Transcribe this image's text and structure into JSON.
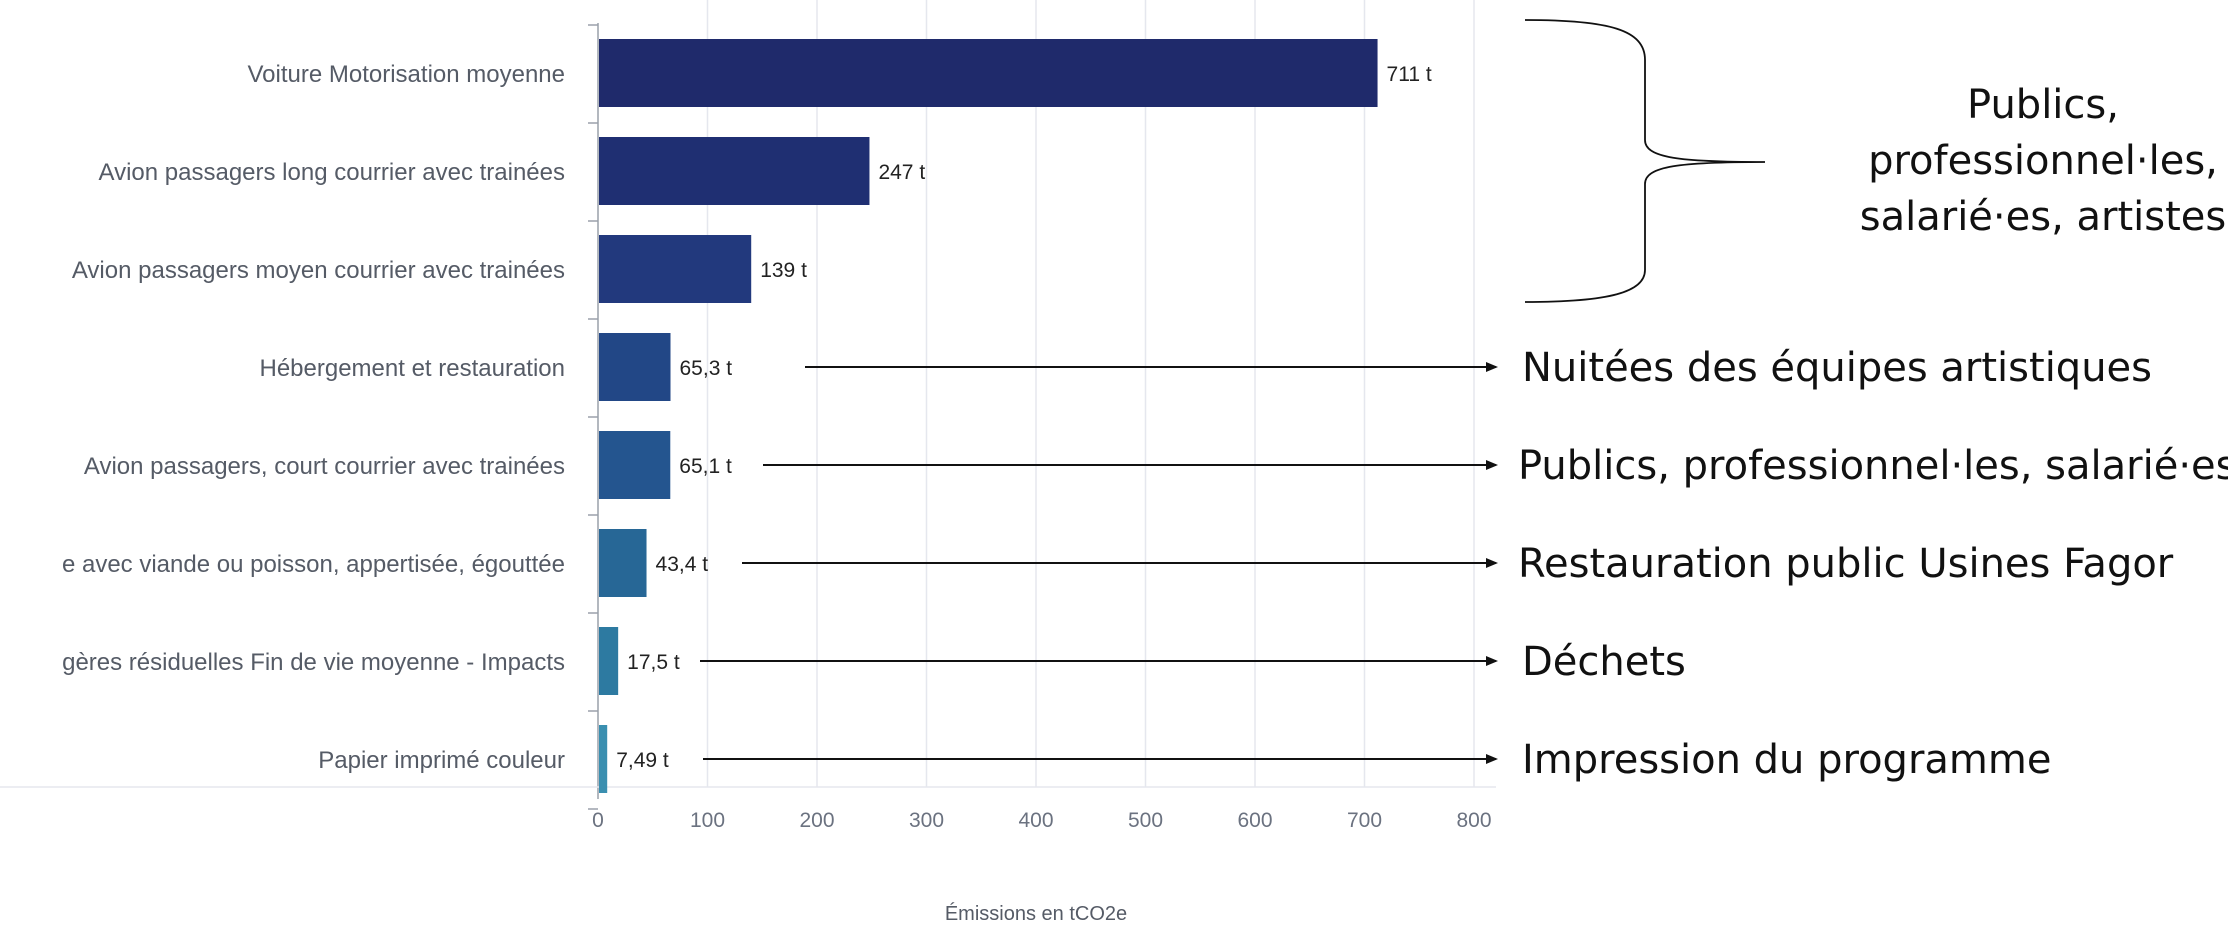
{
  "chart_data": {
    "type": "bar",
    "orientation": "horizontal",
    "categories": [
      "Voiture Motorisation moyenne",
      "Avion passagers long courrier avec trainées",
      "Avion passagers moyen courrier avec trainées",
      "Hébergement et restauration",
      "Avion passagers, court courrier avec trainées",
      "e avec viande ou poisson, appertisée, égouttée",
      "gères résiduelles Fin de vie moyenne - Impacts",
      "Papier imprimé couleur"
    ],
    "values": [
      711,
      247,
      139,
      65.3,
      65.1,
      43.4,
      17.5,
      7.49
    ],
    "value_labels": [
      "711 t",
      "247 t",
      "139 t",
      "65,3 t",
      "65,1 t",
      "43,4 t",
      "17,5 t",
      "7,49 t"
    ],
    "bar_colors": [
      "#1f2a6b",
      "#1f2f72",
      "#22397d",
      "#224786",
      "#24558f",
      "#276796",
      "#2d7aa1",
      "#3a8fb0"
    ],
    "xlabel": "Émissions en tCO2e",
    "ylabel": "",
    "xlim": [
      0,
      800
    ],
    "xticks": [
      0,
      100,
      200,
      300,
      400,
      500,
      600,
      700,
      800
    ],
    "grid": "vertical"
  },
  "annotations": {
    "brace_text": [
      "Publics,",
      "professionnel·les,",
      "salarié·es, artistes"
    ],
    "arrows": [
      {
        "category_index": 3,
        "text": "Nuitées des équipes artistiques"
      },
      {
        "category_index": 4,
        "text": "Publics, professionnel·les, salarié·es"
      },
      {
        "category_index": 5,
        "text": "Restauration public Usines Fagor"
      },
      {
        "category_index": 6,
        "text": "Déchets"
      },
      {
        "category_index": 7,
        "text": "Impression du programme"
      }
    ]
  }
}
